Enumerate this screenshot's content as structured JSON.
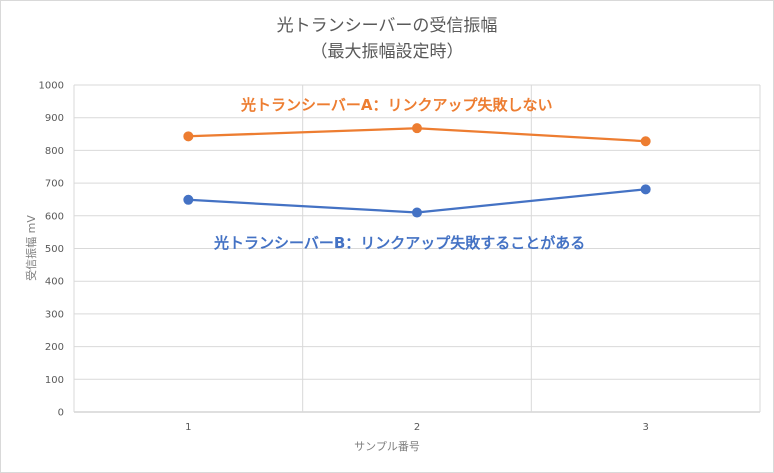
{
  "chart_data": {
    "type": "line",
    "title": "光トランシーバーの受信振幅",
    "subtitle": "（最大振幅設定時）",
    "xlabel": "サンプル番号",
    "ylabel": "受信振幅 mV",
    "categories": [
      "1",
      "2",
      "3"
    ],
    "ylim": [
      0,
      1000
    ],
    "yticks": [
      "0",
      "100",
      "200",
      "300",
      "400",
      "500",
      "600",
      "700",
      "800",
      "900",
      "1000"
    ],
    "grid": true,
    "legend": "none",
    "series": [
      {
        "key": "A",
        "values": [
          843,
          868,
          828
        ],
        "color": "#ED7D31"
      },
      {
        "key": "B",
        "values": [
          649,
          610,
          681
        ],
        "color": "#4472C4"
      }
    ],
    "annotations": [
      {
        "text": "光トランシーバーA：リンクアップ失敗しない",
        "color": "#ED7D31"
      },
      {
        "text": "光トランシーバーB：リンクアップ失敗することがある",
        "color": "#4472C4"
      }
    ]
  }
}
